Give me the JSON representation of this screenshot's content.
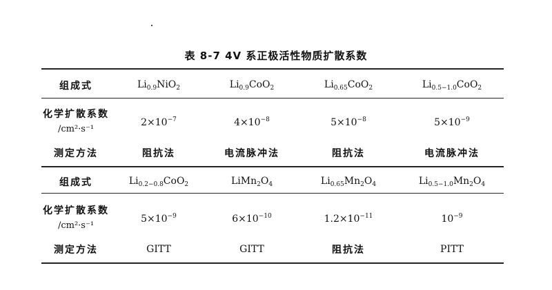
{
  "title": "表 8-7   4V 系正极活性物质扩散系数",
  "row_labels": {
    "composition": "组成式",
    "diffusion_line1": "化学扩散系数",
    "diffusion_unit": "/cm²·s⁻¹",
    "method": "测定方法"
  },
  "blocks": [
    {
      "compositions": [
        [
          {
            "t": "Li"
          },
          {
            "sub": "0.9"
          },
          {
            "t": "NiO"
          },
          {
            "sub": "2"
          }
        ],
        [
          {
            "t": "Li"
          },
          {
            "sub": "0.9"
          },
          {
            "t": "CoO"
          },
          {
            "sub": "2"
          }
        ],
        [
          {
            "t": "Li"
          },
          {
            "sub": "0.65"
          },
          {
            "t": "CoO"
          },
          {
            "sub": "2"
          }
        ],
        [
          {
            "t": "Li"
          },
          {
            "sub": "0.5−1.0"
          },
          {
            "t": "CoO"
          },
          {
            "sub": "2"
          }
        ]
      ],
      "coefficients": [
        {
          "base": "2×10",
          "exp": "−7"
        },
        {
          "base": "4×10",
          "exp": "−8"
        },
        {
          "base": "5×10",
          "exp": "−8"
        },
        {
          "base": "5×10",
          "exp": "−9"
        }
      ],
      "methods": [
        "阻抗法",
        "电流脉冲法",
        "阻抗法",
        "电流脉冲法"
      ]
    },
    {
      "compositions": [
        [
          {
            "t": "Li"
          },
          {
            "sub": "0.2−0.8"
          },
          {
            "t": "CoO"
          },
          {
            "sub": "2"
          }
        ],
        [
          {
            "t": "LiMn"
          },
          {
            "sub": "2"
          },
          {
            "t": "O"
          },
          {
            "sub": "4"
          }
        ],
        [
          {
            "t": "Li"
          },
          {
            "sub": "0.65"
          },
          {
            "t": "Mn"
          },
          {
            "sub": "2"
          },
          {
            "t": "O"
          },
          {
            "sub": "4"
          }
        ],
        [
          {
            "t": "Li"
          },
          {
            "sub": "0.5−1.0"
          },
          {
            "t": "Mn"
          },
          {
            "sub": "2"
          },
          {
            "t": "O"
          },
          {
            "sub": "4"
          }
        ]
      ],
      "coefficients": [
        {
          "base": "5×10",
          "exp": "−9"
        },
        {
          "base": "6×10",
          "exp": "−10"
        },
        {
          "base": "1.2×10",
          "exp": "−11"
        },
        {
          "base": "10",
          "exp": "−9"
        }
      ],
      "methods": [
        "GITT",
        "GITT",
        "阻抗法",
        "PITT"
      ]
    }
  ]
}
